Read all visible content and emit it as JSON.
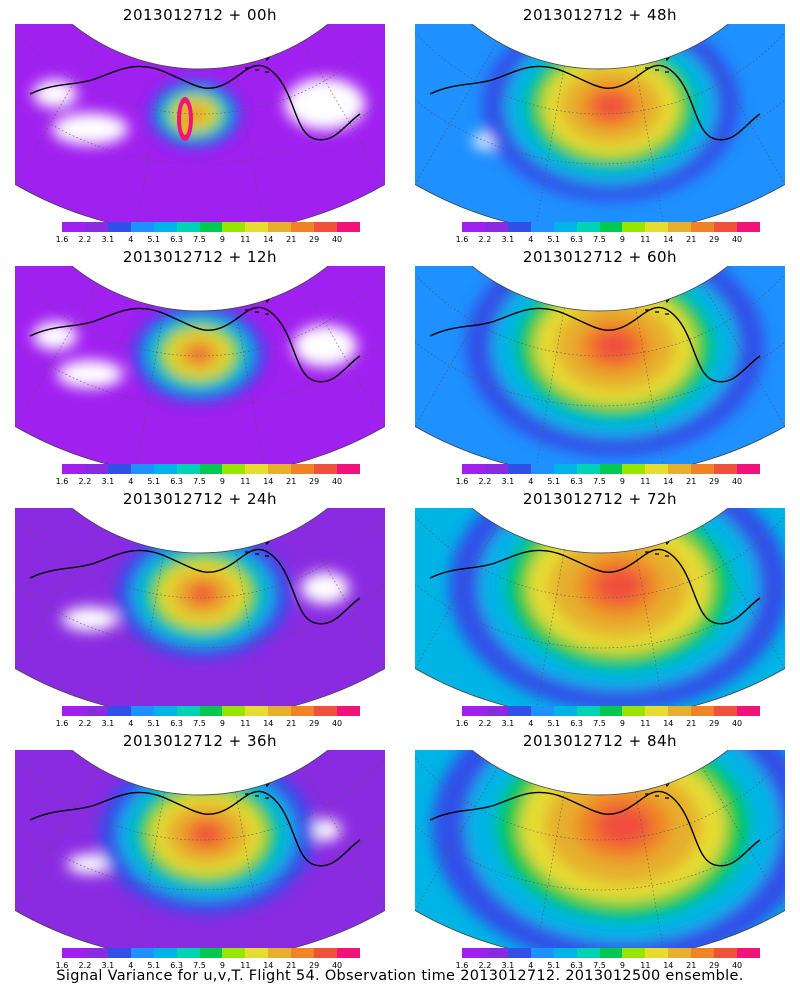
{
  "panels": [
    {
      "title": "2013012712 + 00h",
      "level": 0
    },
    {
      "title": "2013012712 + 48h",
      "level": 4
    },
    {
      "title": "2013012712 + 12h",
      "level": 1
    },
    {
      "title": "2013012712 + 60h",
      "level": 5
    },
    {
      "title": "2013012712 + 24h",
      "level": 2
    },
    {
      "title": "2013012712 + 72h",
      "level": 6
    },
    {
      "title": "2013012712 + 36h",
      "level": 3
    },
    {
      "title": "2013012712 + 84h",
      "level": 7
    }
  ],
  "colorbar": {
    "labels": [
      "1.6",
      "2.2",
      "3.1",
      "4",
      "5.1",
      "6.3",
      "7.5",
      "9",
      "11",
      "14",
      "21",
      "29",
      "40"
    ],
    "colors": [
      "#a020f0",
      "#8a2be2",
      "#3050e8",
      "#1e90ff",
      "#00b4e6",
      "#00d2b4",
      "#00c850",
      "#96e600",
      "#e6dc32",
      "#e6af2d",
      "#f08228",
      "#f0503c",
      "#f0147a"
    ]
  },
  "footer": "Signal Variance for u,v,T. Flight 54. Observation time 2013012712. 2013012500 ensemble."
}
